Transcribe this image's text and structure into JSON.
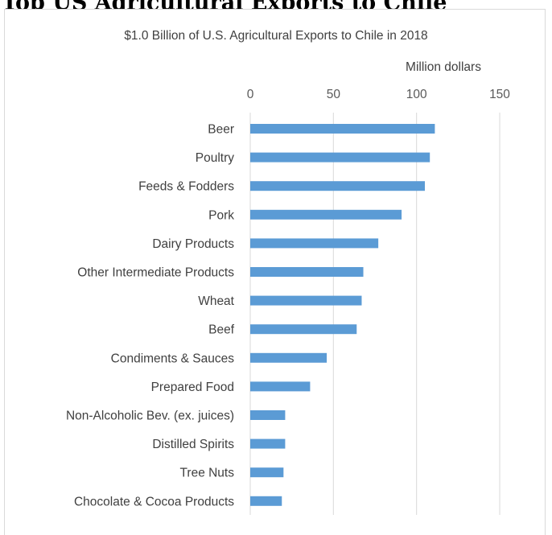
{
  "heading": "Top US Agricultural Exports to Chile",
  "colors": {
    "bar": "#5b9bd5",
    "gridline": "#d9d9d9",
    "text": "#404040"
  },
  "chart_data": {
    "type": "bar",
    "orientation": "horizontal",
    "title": "$1.0 Billion of U.S. Agricultural Exports to Chile in 2018",
    "xlabel": "Million dollars",
    "ylabel": "",
    "xlim": [
      0,
      150
    ],
    "ticks": [
      0,
      50,
      100,
      150
    ],
    "x_axis_position": "top",
    "grid": true,
    "legend": "none",
    "categories": [
      "Beer",
      "Poultry",
      "Feeds & Fodders ",
      "Pork",
      "Dairy Products",
      "Other Intermediate Products",
      "Wheat",
      "Beef",
      "Condiments & Sauces",
      "Prepared Food",
      "Non-Alcoholic Bev. (ex. juices)",
      "Distilled Spirits",
      "Tree Nuts",
      "Chocolate & Cocoa Products"
    ],
    "values": [
      111,
      108,
      105,
      91,
      77,
      68,
      67,
      64,
      46,
      36,
      21,
      21,
      20,
      19
    ]
  }
}
